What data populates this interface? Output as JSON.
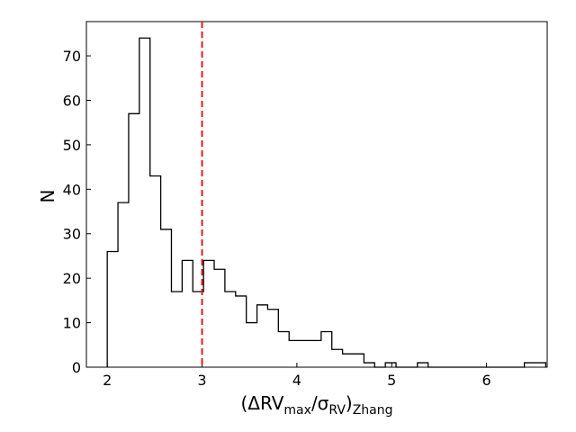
{
  "chart_data": {
    "type": "histogram",
    "title": "",
    "xlabel": "(ΔRV_max/σ_RV)_Zhang",
    "xlabel_parts": {
      "open": "(ΔRV",
      "sub1": "max",
      "slash": "/σ",
      "sub2": "RV",
      "close": ")",
      "sub3": "Zhang"
    },
    "ylabel": "N",
    "xlim": [
      1.78,
      6.64
    ],
    "ylim": [
      0,
      77.7
    ],
    "xticks": [
      2,
      3,
      4,
      5,
      6
    ],
    "yticks": [
      0,
      10,
      20,
      30,
      40,
      50,
      60,
      70
    ],
    "bin_width": 0.1128,
    "bin_start": 2.0,
    "counts": [
      26,
      37,
      57,
      74,
      43,
      31,
      17,
      24,
      17,
      24,
      22,
      17,
      16,
      10,
      14,
      13,
      8,
      6,
      6,
      6,
      8,
      4,
      3,
      3,
      1,
      0,
      1,
      0,
      0,
      1,
      0,
      0,
      0,
      0,
      0,
      0,
      0,
      0,
      0,
      1,
      1
    ],
    "vline": {
      "x": 3.0,
      "color": "#e41a1c",
      "style": "dashed"
    },
    "line_color": "#000000",
    "grid": false
  }
}
